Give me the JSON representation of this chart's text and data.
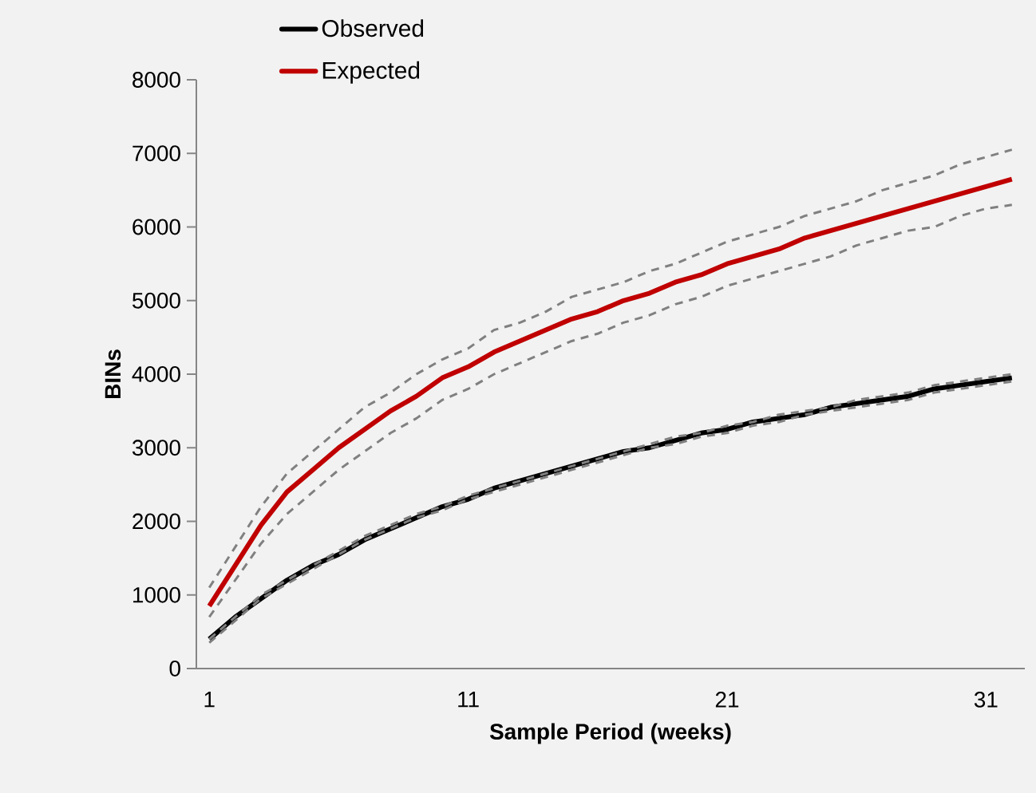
{
  "chart_data": {
    "type": "line",
    "xlabel": "Sample Period (weeks)",
    "ylabel": "BINs",
    "categories": [
      "1",
      null,
      null,
      null,
      null,
      null,
      null,
      null,
      null,
      null,
      "11",
      null,
      null,
      null,
      null,
      null,
      null,
      null,
      null,
      null,
      "21",
      null,
      null,
      null,
      null,
      null,
      null,
      null,
      null,
      null,
      "31",
      null
    ],
    "series": [
      {
        "name": "Observed",
        "color": "#000000",
        "values": [
          400,
          700,
          950,
          1200,
          1400,
          1550,
          1750,
          1900,
          2050,
          2200,
          2300,
          2450,
          2550,
          2650,
          2750,
          2850,
          2950,
          3000,
          3100,
          3200,
          3250,
          3350,
          3400,
          3450,
          3550,
          3600,
          3650,
          3700,
          3800,
          3850,
          3900,
          3950
        ]
      },
      {
        "color": "#808080",
        "line_style": "dashed",
        "values": [
          400,
          700,
          1000,
          1200,
          1400,
          1600,
          1800,
          1950,
          2100,
          2200,
          2350,
          2450,
          2550,
          2650,
          2750,
          2850,
          2950,
          3050,
          3150,
          3200,
          3300,
          3350,
          3450,
          3500,
          3550,
          3650,
          3700,
          3750,
          3850,
          3900,
          3950,
          4000
        ]
      },
      {
        "color": "#808080",
        "line_style": "dashed",
        "values": [
          350,
          650,
          950,
          1150,
          1350,
          1550,
          1750,
          1900,
          2050,
          2150,
          2300,
          2400,
          2500,
          2600,
          2700,
          2800,
          2900,
          3000,
          3050,
          3150,
          3200,
          3300,
          3350,
          3450,
          3500,
          3550,
          3600,
          3650,
          3750,
          3800,
          3850,
          3900
        ]
      },
      {
        "name": "Expected",
        "color": "#c00000",
        "values": [
          850,
          1400,
          1950,
          2400,
          2700,
          3000,
          3250,
          3500,
          3700,
          3950,
          4100,
          4300,
          4450,
          4600,
          4750,
          4850,
          5000,
          5100,
          5250,
          5350,
          5500,
          5600,
          5700,
          5850,
          5950,
          6050,
          6150,
          6250,
          6350,
          6450,
          6550,
          6650
        ]
      },
      {
        "color": "#808080",
        "line_style": "dashed",
        "values": [
          1100,
          1650,
          2200,
          2650,
          2950,
          3250,
          3550,
          3750,
          4000,
          4200,
          4350,
          4600,
          4700,
          4850,
          5050,
          5150,
          5250,
          5400,
          5500,
          5650,
          5800,
          5900,
          6000,
          6150,
          6250,
          6350,
          6500,
          6600,
          6700,
          6850,
          6950,
          7050
        ]
      },
      {
        "color": "#808080",
        "line_style": "dashed",
        "values": [
          700,
          1200,
          1700,
          2100,
          2400,
          2700,
          2950,
          3200,
          3400,
          3650,
          3800,
          4000,
          4150,
          4300,
          4450,
          4550,
          4700,
          4800,
          4950,
          5050,
          5200,
          5300,
          5400,
          5500,
          5600,
          5750,
          5850,
          5950,
          6000,
          6150,
          6250,
          6300
        ]
      }
    ],
    "ylim": [
      0,
      8000
    ],
    "yticks": [
      0,
      1000,
      2000,
      3000,
      4000,
      5000,
      6000,
      7000,
      8000
    ],
    "legend": "top left",
    "grid": false,
    "marker": "none",
    "line_style": "solid"
  }
}
